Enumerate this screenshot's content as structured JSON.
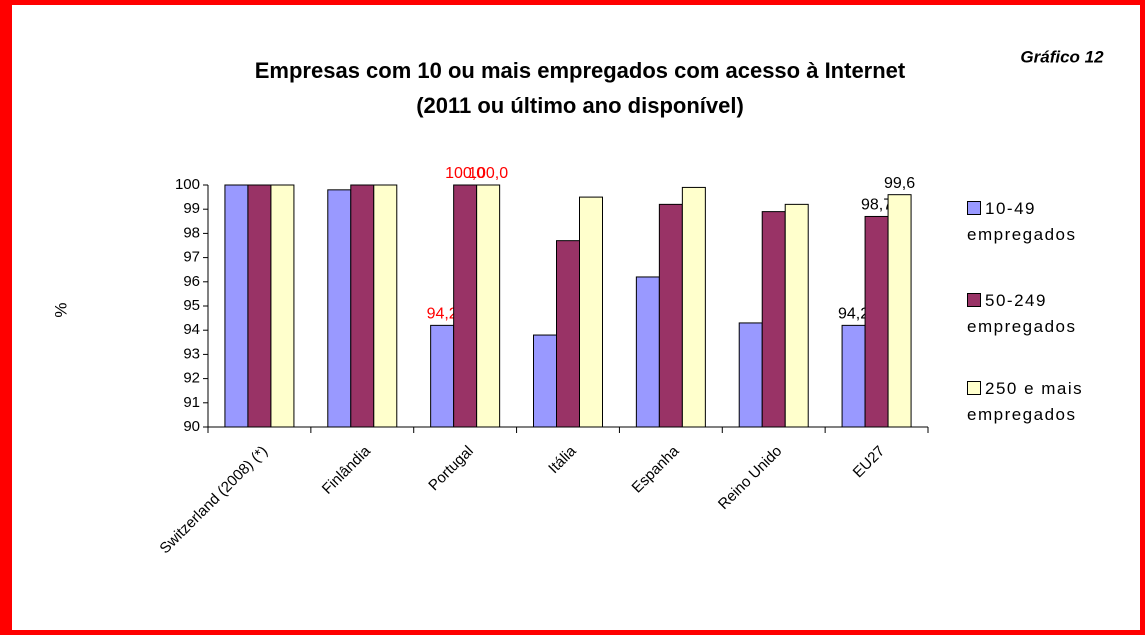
{
  "chart_data": {
    "type": "bar",
    "title": "Empresas com 10 ou mais empregados com acesso à Internet",
    "subtitle": "(2011 ou último ano disponível)",
    "annotation": "Gráfico 12",
    "y_label": "%",
    "categories": [
      "Switzerland (2008) (*)",
      "Finlândia",
      "Portugal",
      "Itália",
      "Espanha",
      "Reino Unido",
      "EU27"
    ],
    "series": [
      {
        "name": "10-49 empregados",
        "color": "#9999ff",
        "values": [
          100,
          99.8,
          94.2,
          93.8,
          96.2,
          94.3,
          94.2
        ],
        "value_labels": [
          null,
          null,
          "94,2",
          null,
          null,
          null,
          "94,2"
        ],
        "label_colors": [
          null,
          null,
          "#ff0000",
          null,
          null,
          null,
          "#000000"
        ]
      },
      {
        "name": "50-249 empregados",
        "color": "#993366",
        "values": [
          100,
          100,
          100,
          97.7,
          99.2,
          98.9,
          98.7
        ],
        "value_labels": [
          null,
          null,
          "100,0",
          null,
          null,
          null,
          "98,7"
        ],
        "label_colors": [
          null,
          null,
          "#ff0000",
          null,
          null,
          null,
          "#000000"
        ]
      },
      {
        "name": "250 e mais empregados",
        "color": "#ffffcc",
        "values": [
          100,
          100,
          100,
          99.5,
          99.9,
          99.2,
          99.6
        ],
        "value_labels": [
          null,
          null,
          "100,0",
          null,
          null,
          null,
          "99,6"
        ],
        "label_colors": [
          null,
          null,
          "#ff0000",
          null,
          null,
          null,
          "#000000"
        ]
      }
    ],
    "ylim": [
      90,
      100
    ],
    "yticks": [
      90,
      91,
      92,
      93,
      94,
      95,
      96,
      97,
      98,
      99,
      100
    ],
    "grid": false,
    "legend": "right"
  }
}
